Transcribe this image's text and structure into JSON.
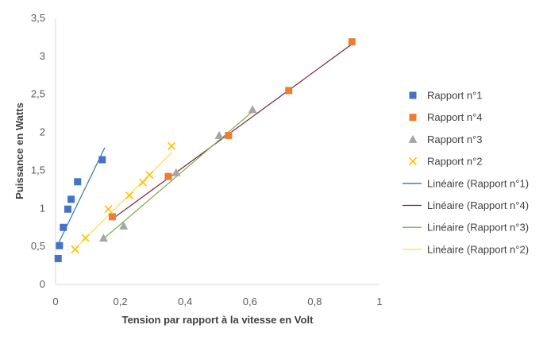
{
  "chart_data": {
    "type": "scatter",
    "title": "",
    "xlabel": "Tension par rapport à la vitesse en Volt",
    "ylabel": "Puissance en Watts",
    "xlim": [
      0,
      1
    ],
    "ylim": [
      0,
      3.5
    ],
    "x_ticks": [
      {
        "value": 0,
        "label": "0"
      },
      {
        "value": 0.2,
        "label": "0,2"
      },
      {
        "value": 0.4,
        "label": "0,4"
      },
      {
        "value": 0.6,
        "label": "0,6"
      },
      {
        "value": 0.8,
        "label": "0,8"
      },
      {
        "value": 1,
        "label": "1"
      }
    ],
    "y_ticks": [
      {
        "value": 0,
        "label": "0"
      },
      {
        "value": 0.5,
        "label": "0,5"
      },
      {
        "value": 1,
        "label": "1"
      },
      {
        "value": 1.5,
        "label": "1,5"
      },
      {
        "value": 2,
        "label": "2"
      },
      {
        "value": 2.5,
        "label": "2,5"
      },
      {
        "value": 3,
        "label": "3"
      },
      {
        "value": 3.5,
        "label": "3,5"
      }
    ],
    "grid": false,
    "legend_position": "right",
    "series": [
      {
        "name": "Rapport n°1",
        "marker": "square",
        "color": "#4472C4",
        "points": [
          [
            0.008,
            0.34
          ],
          [
            0.012,
            0.51
          ],
          [
            0.024,
            0.75
          ],
          [
            0.038,
            0.99
          ],
          [
            0.048,
            1.12
          ],
          [
            0.068,
            1.35
          ],
          [
            0.144,
            1.64
          ]
        ]
      },
      {
        "name": "Rapport n°4",
        "marker": "square",
        "color": "#ED7D31",
        "points": [
          [
            0.175,
            0.89
          ],
          [
            0.348,
            1.42
          ],
          [
            0.534,
            1.96
          ],
          [
            0.72,
            2.55
          ],
          [
            0.915,
            3.19
          ]
        ]
      },
      {
        "name": "Rapport n°3",
        "marker": "triangle",
        "color": "#A5A5A5",
        "points": [
          [
            0.148,
            0.61
          ],
          [
            0.21,
            0.77
          ],
          [
            0.372,
            1.47
          ],
          [
            0.505,
            1.96
          ],
          [
            0.608,
            2.3
          ]
        ]
      },
      {
        "name": "Rapport n°2",
        "marker": "x",
        "color": "#FFC000",
        "points": [
          [
            0.06,
            0.46
          ],
          [
            0.092,
            0.61
          ],
          [
            0.163,
            0.99
          ],
          [
            0.228,
            1.17
          ],
          [
            0.27,
            1.34
          ],
          [
            0.29,
            1.44
          ],
          [
            0.358,
            1.82
          ]
        ]
      }
    ],
    "trendlines": [
      {
        "name": "Linéaire (Rapport n°1)",
        "color": "#2E75B6",
        "from": [
          0.01,
          0.55
        ],
        "to": [
          0.152,
          1.8
        ]
      },
      {
        "name": "Linéaire (Rapport n°4)",
        "color": "#7B1E3A",
        "from": [
          0.175,
          0.86
        ],
        "to": [
          0.918,
          3.17
        ]
      },
      {
        "name": "Linéaire (Rapport n°3)",
        "color": "#70AD47",
        "from": [
          0.148,
          0.6
        ],
        "to": [
          0.61,
          2.28
        ]
      },
      {
        "name": "Linéaire (Rapport n°2)",
        "color": "#FFE03A",
        "from": [
          0.06,
          0.47
        ],
        "to": [
          0.36,
          1.74
        ]
      }
    ]
  }
}
